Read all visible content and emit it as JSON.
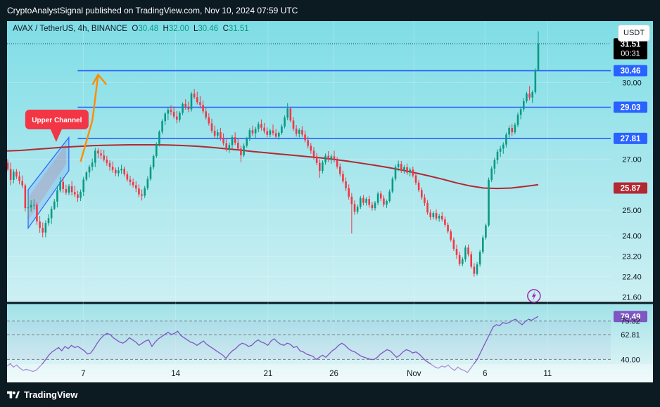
{
  "header": {
    "published": "CryptoAnalystSignal published on TradingView.com, Nov 10, 2024 07:59 UTC"
  },
  "symbol": {
    "name": "AVAX / TetherUS, 4h, BINANCE",
    "o_label": "O",
    "o": "30.48",
    "h_label": "H",
    "h": "32.00",
    "l_label": "L",
    "l": "30.46",
    "c_label": "C",
    "c": "31.51"
  },
  "currency_button": "USDT",
  "footer": {
    "brand": "TradingView"
  },
  "colors": {
    "bull": "#089981",
    "bear": "#f23645",
    "level_line": "#2962ff",
    "ma": "#b22833",
    "rsi": "#7e57c2",
    "arrow": "#ff8c00",
    "callout": "#f23645"
  },
  "chart_data": {
    "type": "candlestick",
    "yaxis": {
      "range": [
        21.4,
        32.4
      ],
      "ticks": [
        "30.00",
        "27.00",
        "25.00",
        "24.00",
        "23.20",
        "22.40",
        "21.60"
      ]
    },
    "xaxis": {
      "ticks": [
        "7",
        "14",
        "21",
        "26",
        "Nov",
        "6",
        "11"
      ]
    },
    "price_labels": [
      {
        "value": "31.51",
        "sub": "00:31",
        "kind": "last"
      },
      {
        "value": "30.46",
        "kind": "level"
      },
      {
        "value": "29.03",
        "kind": "level"
      },
      {
        "value": "27.81",
        "kind": "level"
      },
      {
        "value": "25.87",
        "kind": "ma"
      }
    ],
    "levels": [
      30.46,
      29.03,
      27.81
    ],
    "last_price": 31.51,
    "annotation": {
      "text": "Upper Channel"
    },
    "candles": [
      [
        26.86,
        27.0,
        26.54,
        26.61
      ],
      [
        26.61,
        26.86,
        25.98,
        26.19
      ],
      [
        26.19,
        26.61,
        26.05,
        26.51
      ],
      [
        26.51,
        26.61,
        26.22,
        26.32
      ],
      [
        26.32,
        26.52,
        26.01,
        26.14
      ],
      [
        26.14,
        26.36,
        25.86,
        25.97
      ],
      [
        25.97,
        26.04,
        24.95,
        25.08
      ],
      [
        25.08,
        25.57,
        24.79,
        25.11
      ],
      [
        25.11,
        25.39,
        24.94,
        25.21
      ],
      [
        25.21,
        25.43,
        25.04,
        25.21
      ],
      [
        25.21,
        25.3,
        24.43,
        24.56
      ],
      [
        24.56,
        24.78,
        24.12,
        24.31
      ],
      [
        24.31,
        24.52,
        23.94,
        24.13
      ],
      [
        24.13,
        24.6,
        23.94,
        24.5
      ],
      [
        24.5,
        24.84,
        24.39,
        24.69
      ],
      [
        24.69,
        25.16,
        24.46,
        25.06
      ],
      [
        25.06,
        25.44,
        25.0,
        25.34
      ],
      [
        25.34,
        25.96,
        25.11,
        25.78
      ],
      [
        25.78,
        26.3,
        25.7,
        26.11
      ],
      [
        26.11,
        26.29,
        25.69,
        25.83
      ],
      [
        25.83,
        26.0,
        25.6,
        25.69
      ],
      [
        25.69,
        26.02,
        25.59,
        25.94
      ],
      [
        25.94,
        26.14,
        25.58,
        25.71
      ],
      [
        25.71,
        25.96,
        25.52,
        25.62
      ],
      [
        25.62,
        25.76,
        25.33,
        25.48
      ],
      [
        25.48,
        25.81,
        25.36,
        25.72
      ],
      [
        25.72,
        26.31,
        25.55,
        26.2
      ],
      [
        26.2,
        26.53,
        26.13,
        26.48
      ],
      [
        26.48,
        26.77,
        26.28,
        26.7
      ],
      [
        26.7,
        27.02,
        26.55,
        26.86
      ],
      [
        26.86,
        27.44,
        26.69,
        27.33
      ],
      [
        27.33,
        27.43,
        27.03,
        27.22
      ],
      [
        27.22,
        27.38,
        27.0,
        27.14
      ],
      [
        27.14,
        27.36,
        26.9,
        26.98
      ],
      [
        26.98,
        27.13,
        26.74,
        26.85
      ],
      [
        26.85,
        26.95,
        26.55,
        26.7
      ],
      [
        26.7,
        26.91,
        26.47,
        26.58
      ],
      [
        26.58,
        26.67,
        26.34,
        26.45
      ],
      [
        26.45,
        26.69,
        26.32,
        26.56
      ],
      [
        26.56,
        26.78,
        26.42,
        26.62
      ],
      [
        26.62,
        26.71,
        26.32,
        26.41
      ],
      [
        26.41,
        26.52,
        26.12,
        26.2
      ],
      [
        26.2,
        26.35,
        25.97,
        26.1
      ],
      [
        26.1,
        26.24,
        25.89,
        25.98
      ],
      [
        25.98,
        26.14,
        25.71,
        25.85
      ],
      [
        25.85,
        26.01,
        25.51,
        25.62
      ],
      [
        25.62,
        25.81,
        25.38,
        25.57
      ],
      [
        25.57,
        25.95,
        25.48,
        25.86
      ],
      [
        25.86,
        26.33,
        25.79,
        26.22
      ],
      [
        26.22,
        26.78,
        26.15,
        26.68
      ],
      [
        26.68,
        27.18,
        26.59,
        27.12
      ],
      [
        27.12,
        27.66,
        27.04,
        27.59
      ],
      [
        27.59,
        28.13,
        27.5,
        28.07
      ],
      [
        28.07,
        28.56,
        27.98,
        28.49
      ],
      [
        28.49,
        28.84,
        28.34,
        28.78
      ],
      [
        28.78,
        29.02,
        28.52,
        28.93
      ],
      [
        28.93,
        29.11,
        28.72,
        28.85
      ],
      [
        28.85,
        29.06,
        28.59,
        28.67
      ],
      [
        28.67,
        28.88,
        28.4,
        28.54
      ],
      [
        28.54,
        28.87,
        28.45,
        28.81
      ],
      [
        28.81,
        29.22,
        28.72,
        29.16
      ],
      [
        29.16,
        29.34,
        28.93,
        29.04
      ],
      [
        29.04,
        29.25,
        28.83,
        28.95
      ],
      [
        28.95,
        29.63,
        28.86,
        29.56
      ],
      [
        29.56,
        29.74,
        29.35,
        29.42
      ],
      [
        29.42,
        29.63,
        29.14,
        29.23
      ],
      [
        29.23,
        29.47,
        28.98,
        29.12
      ],
      [
        29.12,
        29.29,
        28.78,
        28.87
      ],
      [
        28.87,
        29.03,
        28.55,
        28.63
      ],
      [
        28.63,
        28.79,
        28.31,
        28.4
      ],
      [
        28.4,
        28.58,
        28.02,
        28.11
      ],
      [
        28.11,
        28.31,
        27.79,
        27.92
      ],
      [
        27.92,
        28.16,
        27.77,
        28.05
      ],
      [
        28.05,
        28.22,
        27.72,
        27.81
      ],
      [
        27.81,
        28.01,
        27.53,
        27.62
      ],
      [
        27.62,
        27.78,
        27.3,
        27.37
      ],
      [
        27.37,
        27.65,
        27.24,
        27.55
      ],
      [
        27.55,
        27.94,
        27.42,
        27.86
      ],
      [
        27.86,
        28.05,
        27.56,
        27.64
      ],
      [
        27.64,
        27.79,
        27.33,
        27.41
      ],
      [
        27.41,
        27.53,
        26.88,
        27.15
      ],
      [
        27.15,
        27.61,
        27.08,
        27.52
      ],
      [
        27.52,
        27.87,
        27.45,
        27.79
      ],
      [
        27.79,
        28.21,
        27.71,
        28.13
      ],
      [
        28.13,
        28.31,
        27.91,
        28.01
      ],
      [
        28.01,
        28.26,
        27.82,
        28.18
      ],
      [
        28.18,
        28.46,
        28.05,
        28.37
      ],
      [
        28.37,
        28.55,
        28.12,
        28.23
      ],
      [
        28.23,
        28.41,
        28.0,
        28.09
      ],
      [
        28.09,
        28.24,
        27.85,
        27.95
      ],
      [
        27.95,
        28.18,
        27.86,
        28.12
      ],
      [
        28.12,
        28.35,
        27.93,
        28.02
      ],
      [
        28.02,
        28.17,
        27.79,
        27.88
      ],
      [
        27.88,
        28.08,
        27.76,
        28.03
      ],
      [
        28.03,
        28.36,
        27.95,
        28.28
      ],
      [
        28.28,
        28.71,
        28.2,
        28.62
      ],
      [
        28.62,
        29.19,
        28.52,
        28.98
      ],
      [
        28.98,
        29.05,
        28.44,
        28.51
      ],
      [
        28.51,
        28.64,
        28.1,
        28.19
      ],
      [
        28.19,
        28.33,
        27.88,
        27.99
      ],
      [
        27.99,
        28.21,
        27.85,
        28.14
      ],
      [
        28.14,
        28.29,
        27.87,
        27.96
      ],
      [
        27.96,
        28.12,
        27.65,
        27.74
      ],
      [
        27.74,
        27.89,
        27.42,
        27.52
      ],
      [
        27.52,
        27.63,
        27.21,
        27.33
      ],
      [
        27.33,
        27.47,
        26.98,
        27.1
      ],
      [
        27.1,
        27.24,
        26.76,
        26.85
      ],
      [
        26.85,
        26.99,
        26.27,
        26.54
      ],
      [
        26.54,
        26.95,
        26.44,
        26.87
      ],
      [
        26.87,
        27.22,
        26.78,
        27.13
      ],
      [
        27.13,
        27.31,
        26.89,
        26.98
      ],
      [
        26.98,
        27.19,
        26.82,
        27.11
      ],
      [
        27.11,
        27.33,
        26.87,
        26.96
      ],
      [
        26.96,
        27.08,
        26.63,
        26.71
      ],
      [
        26.71,
        26.83,
        26.32,
        26.42
      ],
      [
        26.42,
        26.55,
        26.05,
        26.13
      ],
      [
        26.13,
        26.28,
        25.75,
        25.86
      ],
      [
        25.86,
        26.01,
        25.42,
        25.53
      ],
      [
        25.53,
        25.67,
        24.09,
        25.24
      ],
      [
        25.24,
        25.38,
        24.82,
        24.94
      ],
      [
        24.94,
        25.22,
        24.85,
        25.13
      ],
      [
        25.13,
        25.56,
        25.05,
        25.48
      ],
      [
        25.48,
        25.59,
        25.19,
        25.29
      ],
      [
        25.29,
        25.51,
        25.18,
        25.44
      ],
      [
        25.44,
        25.57,
        25.1,
        25.21
      ],
      [
        25.21,
        25.33,
        24.98,
        25.08
      ],
      [
        25.08,
        25.36,
        24.99,
        25.29
      ],
      [
        25.29,
        25.73,
        25.2,
        25.65
      ],
      [
        25.65,
        25.75,
        25.35,
        25.46
      ],
      [
        25.46,
        25.58,
        25.13,
        25.22
      ],
      [
        25.22,
        25.42,
        25.09,
        25.36
      ],
      [
        25.36,
        25.82,
        25.29,
        25.73
      ],
      [
        25.73,
        26.31,
        25.66,
        26.23
      ],
      [
        26.23,
        26.78,
        26.15,
        26.69
      ],
      [
        26.69,
        26.94,
        26.53,
        26.81
      ],
      [
        26.81,
        26.93,
        26.46,
        26.55
      ],
      [
        26.55,
        26.76,
        26.43,
        26.68
      ],
      [
        26.68,
        26.83,
        26.38,
        26.47
      ],
      [
        26.47,
        26.67,
        26.33,
        26.59
      ],
      [
        26.59,
        26.71,
        26.28,
        26.36
      ],
      [
        26.36,
        26.46,
        25.99,
        26.08
      ],
      [
        26.08,
        26.19,
        25.71,
        25.79
      ],
      [
        25.79,
        25.89,
        25.41,
        25.5
      ],
      [
        25.5,
        25.63,
        25.17,
        25.28
      ],
      [
        25.28,
        25.4,
        24.82,
        24.91
      ],
      [
        24.91,
        25.03,
        24.62,
        24.73
      ],
      [
        24.73,
        24.96,
        24.64,
        24.89
      ],
      [
        24.89,
        25.03,
        24.6,
        24.68
      ],
      [
        24.68,
        24.86,
        24.55,
        24.78
      ],
      [
        24.78,
        24.93,
        24.56,
        24.64
      ],
      [
        24.64,
        24.75,
        24.35,
        24.43
      ],
      [
        24.43,
        24.52,
        24.09,
        24.17
      ],
      [
        24.17,
        24.25,
        23.77,
        23.85
      ],
      [
        23.85,
        23.94,
        23.41,
        23.49
      ],
      [
        23.49,
        23.65,
        23.1,
        23.25
      ],
      [
        23.25,
        23.38,
        22.82,
        22.9
      ],
      [
        22.9,
        23.17,
        22.81,
        23.08
      ],
      [
        23.08,
        23.62,
        22.98,
        23.54
      ],
      [
        23.54,
        23.66,
        23.19,
        23.28
      ],
      [
        23.28,
        23.39,
        22.72,
        22.79
      ],
      [
        22.79,
        22.93,
        22.4,
        22.51
      ],
      [
        22.51,
        22.97,
        22.44,
        22.88
      ],
      [
        22.88,
        23.45,
        22.79,
        23.37
      ],
      [
        23.37,
        24.02,
        23.3,
        23.93
      ],
      [
        23.93,
        24.48,
        23.85,
        24.41
      ],
      [
        24.41,
        26.28,
        24.35,
        26.19
      ],
      [
        26.19,
        26.72,
        26.1,
        26.63
      ],
      [
        26.63,
        27.05,
        26.41,
        26.96
      ],
      [
        26.96,
        27.38,
        26.81,
        27.29
      ],
      [
        27.29,
        27.52,
        27.08,
        27.41
      ],
      [
        27.41,
        27.66,
        27.21,
        27.57
      ],
      [
        27.57,
        28.04,
        27.46,
        27.96
      ],
      [
        27.96,
        28.31,
        27.83,
        28.22
      ],
      [
        28.22,
        28.37,
        27.9,
        28.05
      ],
      [
        28.05,
        28.42,
        27.97,
        28.34
      ],
      [
        28.34,
        28.82,
        28.25,
        28.73
      ],
      [
        28.73,
        29.06,
        28.56,
        28.95
      ],
      [
        28.95,
        29.38,
        28.86,
        29.27
      ],
      [
        29.27,
        29.63,
        29.19,
        29.56
      ],
      [
        29.56,
        29.86,
        29.31,
        29.41
      ],
      [
        29.41,
        29.69,
        29.2,
        29.62
      ],
      [
        29.62,
        30.55,
        29.55,
        30.48
      ],
      [
        30.48,
        32.0,
        30.46,
        31.51
      ]
    ],
    "ma": [
      27.32,
      27.34,
      27.38,
      27.42,
      27.46,
      27.49,
      27.52,
      27.54,
      27.55,
      27.56,
      27.56,
      27.56,
      27.55,
      27.53,
      27.5,
      27.46,
      27.41,
      27.36,
      27.3,
      27.25,
      27.2,
      27.15,
      27.1,
      27.05,
      26.99,
      26.92,
      26.84,
      26.76,
      26.67,
      26.57,
      26.46,
      26.34,
      26.21,
      26.07,
      25.95,
      25.87,
      25.85,
      25.87,
      25.93,
      26.0
    ],
    "rsi": {
      "value": "79.49",
      "ticks": [
        "75.32",
        "62.81",
        "40.00"
      ],
      "series": [
        34,
        36,
        33,
        35,
        32,
        30,
        31,
        30,
        29,
        30,
        33,
        36,
        40,
        44,
        47,
        49,
        51,
        48,
        52,
        50,
        53,
        51,
        52,
        50,
        48,
        45,
        46,
        50,
        55,
        59,
        62,
        64,
        63,
        60,
        58,
        56,
        55,
        57,
        60,
        58,
        56,
        53,
        55,
        57,
        58,
        52,
        56,
        59,
        61,
        63,
        65,
        63,
        64,
        66,
        62,
        60,
        58,
        56,
        55,
        53,
        55,
        57,
        54,
        52,
        50,
        48,
        46,
        44,
        41,
        45,
        48,
        50,
        53,
        55,
        54,
        52,
        53,
        56,
        58,
        56,
        55,
        53,
        57,
        59,
        56,
        54,
        53,
        55,
        54,
        51,
        52,
        48,
        47,
        45,
        44,
        43,
        40,
        42,
        44,
        42,
        45,
        48,
        50,
        53,
        55,
        53,
        50,
        48,
        47,
        45,
        43,
        42,
        41,
        40,
        40,
        42,
        45,
        47,
        49,
        48,
        45,
        42,
        44,
        47,
        49,
        48,
        46,
        47,
        45,
        42,
        39,
        37,
        35,
        33,
        32,
        34,
        33,
        35,
        32,
        30,
        33,
        31,
        30,
        28,
        32,
        36,
        40,
        46,
        52,
        58,
        64,
        70,
        72,
        71,
        74,
        73,
        74,
        76,
        77,
        74,
        72,
        75,
        77,
        76,
        78,
        79.5
      ]
    }
  }
}
